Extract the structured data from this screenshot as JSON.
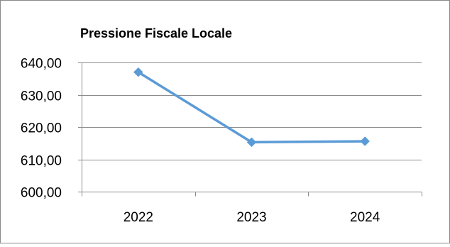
{
  "chart_data": {
    "type": "line",
    "title": "Pressione Fiscale Locale",
    "categories": [
      "2022",
      "2023",
      "2024"
    ],
    "series": [
      {
        "values": [
          637.0,
          615.3,
          615.6
        ],
        "color": "#5B9BD5",
        "marker": "diamond"
      }
    ],
    "yticks": [
      "640,00",
      "630,00",
      "620,00",
      "610,00",
      "600,00"
    ],
    "ylim": [
      600,
      640
    ],
    "grid": true,
    "legend": "none"
  }
}
